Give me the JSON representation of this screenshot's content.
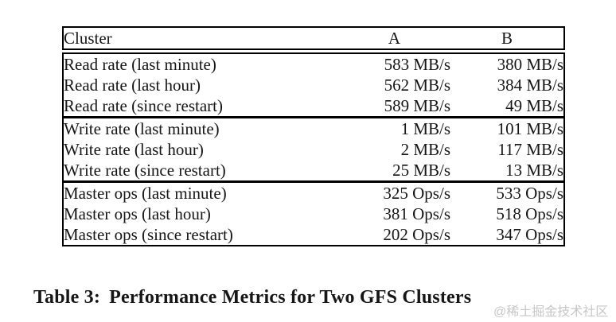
{
  "page": {
    "background_color": "#ffffff",
    "rule_color": "#000000",
    "text_color": "#161616"
  },
  "table": {
    "columns": {
      "label": "Cluster",
      "a": "A",
      "b": "B"
    },
    "sections": [
      {
        "name": "read-rate",
        "rows": [
          {
            "label": "Read rate (last minute)",
            "a": "583 MB/s",
            "b": "380 MB/s"
          },
          {
            "label": "Read rate (last hour)",
            "a": "562 MB/s",
            "b": "384 MB/s"
          },
          {
            "label": "Read rate (since restart)",
            "a": "589 MB/s",
            "b": "49 MB/s"
          }
        ]
      },
      {
        "name": "write-rate",
        "rows": [
          {
            "label": "Write rate (last minute)",
            "a": "1 MB/s",
            "b": "101 MB/s"
          },
          {
            "label": "Write rate (last hour)",
            "a": "2 MB/s",
            "b": "117 MB/s"
          },
          {
            "label": "Write rate (since restart)",
            "a": "25 MB/s",
            "b": "13 MB/s"
          }
        ]
      },
      {
        "name": "master-ops",
        "rows": [
          {
            "label": "Master ops (last minute)",
            "a": "325 Ops/s",
            "b": "533 Ops/s"
          },
          {
            "label": "Master ops (last hour)",
            "a": "381 Ops/s",
            "b": "518 Ops/s"
          },
          {
            "label": "Master ops (since restart)",
            "a": "202 Ops/s",
            "b": "347 Ops/s"
          }
        ]
      }
    ]
  },
  "caption": {
    "prefix": "Table 3:",
    "title": "Performance Metrics for Two GFS Clusters"
  },
  "watermark": {
    "text": "@稀土掘金技术社区",
    "color": "#c7c7c7"
  }
}
